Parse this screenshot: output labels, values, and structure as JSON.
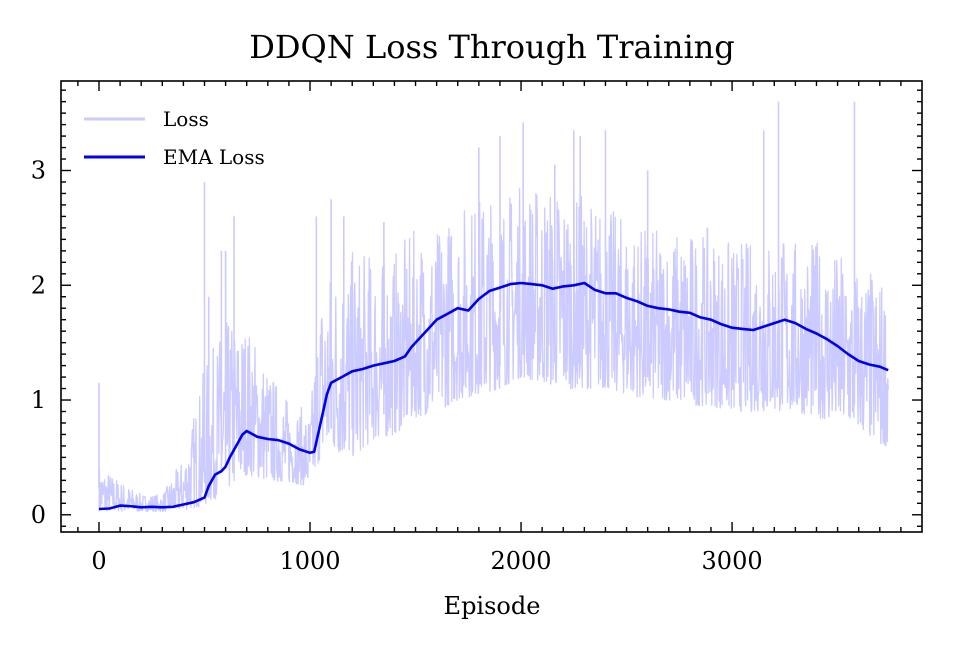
{
  "chart_data": {
    "type": "line",
    "title": "DDQN Loss Through Training",
    "xlabel": "Episode",
    "ylabel": "",
    "xlim": [
      -180,
      3900
    ],
    "ylim": [
      -0.15,
      3.78
    ],
    "xticks": [
      0,
      1000,
      2000,
      3000
    ],
    "yticks": [
      0,
      1,
      2,
      3
    ],
    "legend_position": "top-left",
    "grid": false,
    "series": [
      {
        "name": "Loss",
        "color": "#cbcbff",
        "style": "noisy-band",
        "x": [
          0,
          100,
          200,
          300,
          400,
          500,
          600,
          700,
          800,
          900,
          1000,
          1050,
          1100,
          1200,
          1300,
          1400,
          1500,
          1600,
          1700,
          1800,
          1900,
          2000,
          2100,
          2200,
          2300,
          2400,
          2500,
          2600,
          2700,
          2800,
          2900,
          3000,
          3100,
          3200,
          3300,
          3400,
          3500,
          3600,
          3700,
          3740
        ],
        "low": [
          0.03,
          0.03,
          0.03,
          0.03,
          0.04,
          0.08,
          0.2,
          0.35,
          0.3,
          0.28,
          0.25,
          0.5,
          0.55,
          0.5,
          0.65,
          0.7,
          0.85,
          0.9,
          1.0,
          1.05,
          1.1,
          1.2,
          1.15,
          1.1,
          1.1,
          1.1,
          1.05,
          1.0,
          1.0,
          0.95,
          0.95,
          0.9,
          0.9,
          0.9,
          0.9,
          0.85,
          0.8,
          0.75,
          0.6,
          0.6
        ],
        "high": [
          0.45,
          0.3,
          0.18,
          0.18,
          0.5,
          1.3,
          1.7,
          1.7,
          1.3,
          1.0,
          0.9,
          2.0,
          2.2,
          2.3,
          2.3,
          2.3,
          2.5,
          2.5,
          2.7,
          2.8,
          2.8,
          2.9,
          2.9,
          2.9,
          2.8,
          2.7,
          2.6,
          2.5,
          2.5,
          2.5,
          2.5,
          2.4,
          2.4,
          2.5,
          2.4,
          2.4,
          2.3,
          2.2,
          2.1,
          2.0
        ],
        "peaks": [
          [
            0,
            1.15
          ],
          [
            500,
            2.9
          ],
          [
            520,
            1.9
          ],
          [
            580,
            2.3
          ],
          [
            600,
            2.3
          ],
          [
            640,
            2.6
          ],
          [
            1030,
            2.6
          ],
          [
            1100,
            2.75
          ],
          [
            1160,
            2.6
          ],
          [
            1350,
            2.55
          ],
          [
            1800,
            3.2
          ],
          [
            1900,
            3.3
          ],
          [
            2010,
            3.42
          ],
          [
            2160,
            3.05
          ],
          [
            2250,
            3.35
          ],
          [
            2280,
            3.3
          ],
          [
            2400,
            3.35
          ],
          [
            2600,
            3.0
          ],
          [
            3150,
            3.35
          ],
          [
            3220,
            3.6
          ],
          [
            3580,
            3.6
          ]
        ]
      },
      {
        "name": "EMA Loss",
        "color": "#0000ee",
        "x": [
          0,
          50,
          100,
          150,
          200,
          250,
          300,
          350,
          400,
          450,
          500,
          520,
          550,
          580,
          600,
          620,
          650,
          680,
          700,
          750,
          800,
          850,
          900,
          950,
          1000,
          1020,
          1050,
          1080,
          1100,
          1150,
          1200,
          1250,
          1300,
          1350,
          1400,
          1450,
          1480,
          1500,
          1550,
          1600,
          1650,
          1700,
          1750,
          1800,
          1850,
          1900,
          1950,
          2000,
          2050,
          2100,
          2150,
          2200,
          2250,
          2300,
          2350,
          2400,
          2450,
          2500,
          2550,
          2600,
          2650,
          2700,
          2750,
          2800,
          2850,
          2900,
          2950,
          3000,
          3050,
          3100,
          3150,
          3200,
          3250,
          3300,
          3350,
          3400,
          3450,
          3500,
          3550,
          3600,
          3650,
          3700,
          3740
        ],
        "values": [
          0.05,
          0.055,
          0.08,
          0.075,
          0.065,
          0.07,
          0.065,
          0.07,
          0.09,
          0.11,
          0.15,
          0.25,
          0.35,
          0.38,
          0.42,
          0.5,
          0.6,
          0.7,
          0.73,
          0.68,
          0.66,
          0.65,
          0.62,
          0.57,
          0.54,
          0.55,
          0.8,
          1.05,
          1.15,
          1.2,
          1.25,
          1.27,
          1.3,
          1.32,
          1.34,
          1.38,
          1.46,
          1.5,
          1.6,
          1.7,
          1.75,
          1.8,
          1.78,
          1.88,
          1.95,
          1.98,
          2.01,
          2.02,
          2.01,
          2.0,
          1.97,
          1.99,
          2.0,
          2.02,
          1.96,
          1.93,
          1.93,
          1.89,
          1.86,
          1.82,
          1.8,
          1.79,
          1.77,
          1.76,
          1.72,
          1.7,
          1.66,
          1.63,
          1.62,
          1.61,
          1.64,
          1.67,
          1.7,
          1.67,
          1.62,
          1.58,
          1.53,
          1.47,
          1.4,
          1.34,
          1.31,
          1.29,
          1.26
        ]
      }
    ]
  }
}
